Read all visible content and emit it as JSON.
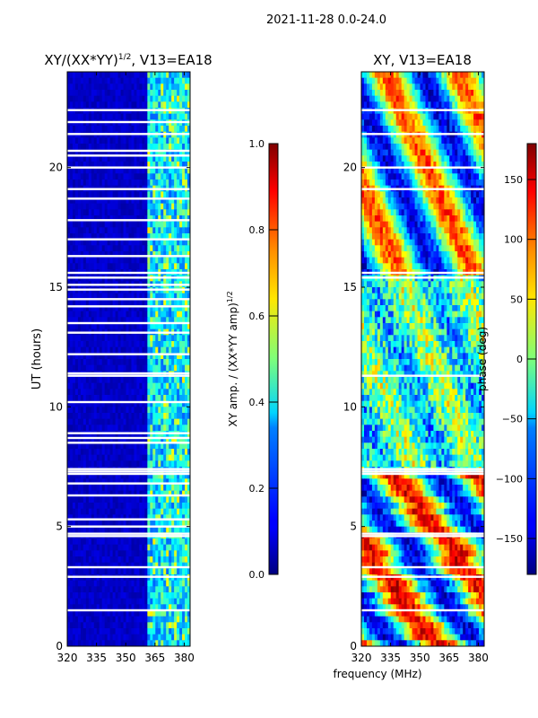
{
  "figure": {
    "suptitle": "2021-11-28 0.0-24.0",
    "shared_xlabel": "frequency (MHz)"
  },
  "chart_data": [
    {
      "type": "heatmap",
      "title_main": "XY/(XX*YY)",
      "title_sup": "1/2",
      "title_tail": ", V13=EA18",
      "ylabel": "UT (hours)",
      "xlim": [
        320,
        383
      ],
      "ylim": [
        0,
        24
      ],
      "xticks": [
        {
          "value": 320,
          "label": "320"
        },
        {
          "value": 335,
          "label": "335"
        },
        {
          "value": 350,
          "label": "350"
        },
        {
          "value": 365,
          "label": "365"
        },
        {
          "value": 380,
          "label": "380"
        }
      ],
      "yticks": [
        {
          "value": 0,
          "label": "0"
        },
        {
          "value": 5,
          "label": "5"
        },
        {
          "value": 10,
          "label": "10"
        },
        {
          "value": 15,
          "label": "15"
        },
        {
          "value": 20,
          "label": "20"
        }
      ],
      "colorbar": {
        "label_main": "XY amp. / (XX*YY amp)",
        "label_sup": "1/2",
        "range": [
          0,
          1
        ],
        "ticks": [
          {
            "value": 0.0,
            "label": "0.0"
          },
          {
            "value": 0.2,
            "label": "0.2"
          },
          {
            "value": 0.4,
            "label": "0.4"
          },
          {
            "value": 0.6,
            "label": "0.6"
          },
          {
            "value": 0.8,
            "label": "0.8"
          },
          {
            "value": 1.0,
            "label": "1.0"
          }
        ],
        "colormap": "jet"
      },
      "data_gaps_ut_hours": [
        1.5,
        2.9,
        3.3,
        4.6,
        4.7,
        5.0,
        5.3,
        6.3,
        6.8,
        7.2,
        7.3,
        7.4,
        8.5,
        8.7,
        8.9,
        10.2,
        11.3,
        11.4,
        12.2,
        13.1,
        13.5,
        14.2,
        14.5,
        14.9,
        15.1,
        15.4,
        15.6,
        16.3,
        17.0,
        17.8,
        18.7,
        19.1,
        20.0,
        20.5,
        20.7,
        21.4,
        21.9,
        22.4
      ]
    },
    {
      "type": "heatmap",
      "title_main": "XY, V13=EA18",
      "xlim": [
        320,
        383
      ],
      "ylim": [
        0,
        24
      ],
      "xticks": [
        {
          "value": 320,
          "label": "320"
        },
        {
          "value": 335,
          "label": "335"
        },
        {
          "value": 350,
          "label": "350"
        },
        {
          "value": 365,
          "label": "365"
        },
        {
          "value": 380,
          "label": "380"
        }
      ],
      "yticks": [
        {
          "value": 0,
          "label": "0"
        },
        {
          "value": 5,
          "label": "5"
        },
        {
          "value": 10,
          "label": "10"
        },
        {
          "value": 15,
          "label": "15"
        },
        {
          "value": 20,
          "label": "20"
        }
      ],
      "colorbar": {
        "label_main": "phase (deg)",
        "range": [
          -180,
          180
        ],
        "ticks": [
          {
            "value": -150,
            "label": "−150"
          },
          {
            "value": -100,
            "label": "−100"
          },
          {
            "value": -50,
            "label": "−50"
          },
          {
            "value": 0,
            "label": "0"
          },
          {
            "value": 50,
            "label": "50"
          },
          {
            "value": 100,
            "label": "100"
          },
          {
            "value": 150,
            "label": "150"
          }
        ],
        "colormap": "jet"
      },
      "data_gaps_ut_hours": [
        1.5,
        2.9,
        3.3,
        4.6,
        4.7,
        7.2,
        7.3,
        7.4,
        11.3,
        15.4,
        15.6,
        19.1,
        20.0,
        21.4,
        22.4
      ]
    }
  ]
}
